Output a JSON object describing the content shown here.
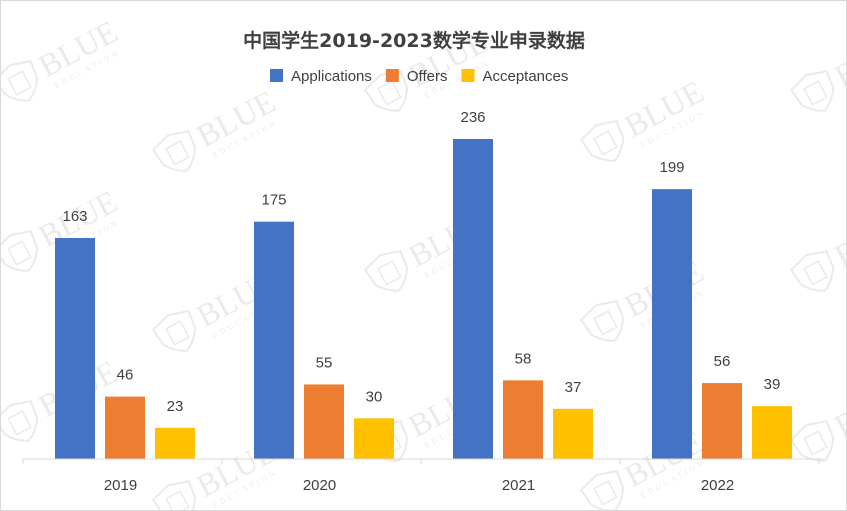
{
  "chart_data": {
    "type": "bar",
    "title": "中国学生2019-2023数学专业申录数据",
    "categories": [
      "2019",
      "2020",
      "2021",
      "2022"
    ],
    "series": [
      {
        "name": "Applications",
        "color": "#4472C4",
        "values": [
          163,
          175,
          236,
          199
        ]
      },
      {
        "name": "Offers",
        "color": "#ED7D31",
        "values": [
          46,
          55,
          58,
          56
        ]
      },
      {
        "name": "Acceptances",
        "color": "#FFC000",
        "values": [
          23,
          30,
          37,
          39
        ]
      }
    ],
    "xlabel": "",
    "ylabel": "",
    "ylim": [
      0,
      236
    ],
    "grid": false,
    "legend_position": "top"
  },
  "watermark": {
    "brand": "BLUE",
    "subtitle": "EDUCATION"
  },
  "colors": {
    "axis": "#d9d9d9",
    "text": "#404040",
    "watermark": "#d9d9d9"
  }
}
